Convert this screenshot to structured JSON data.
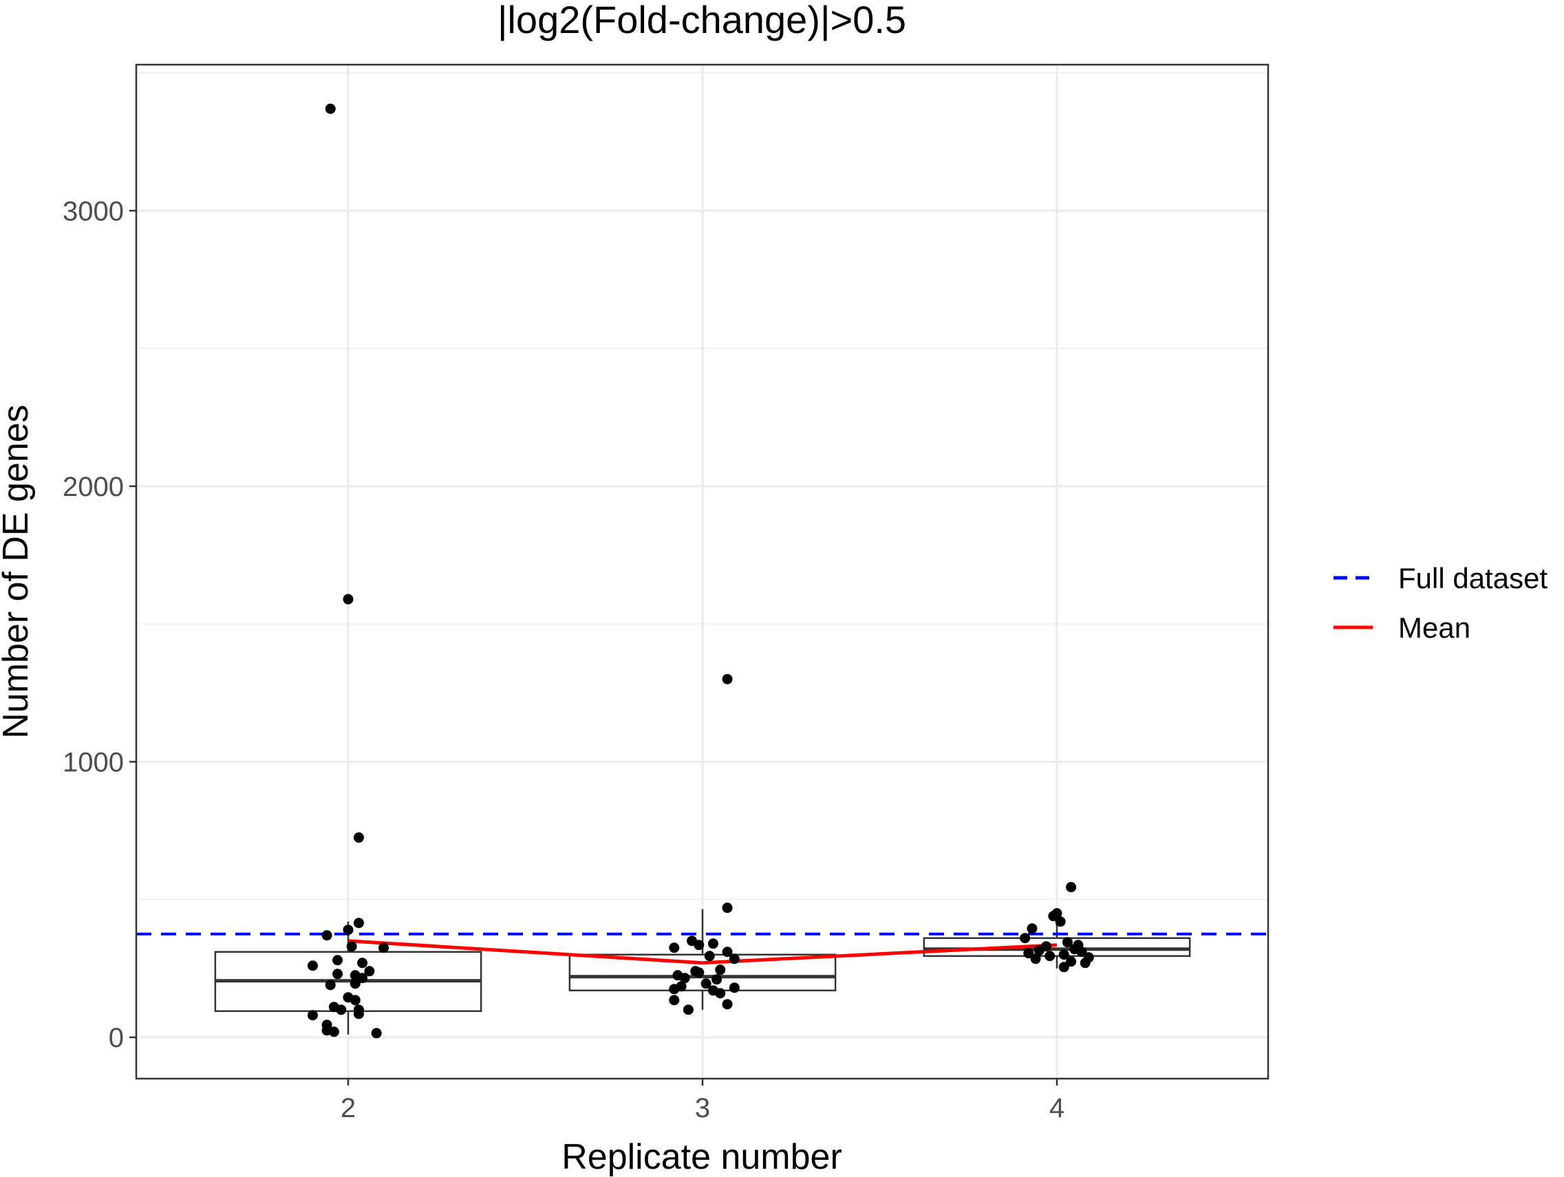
{
  "chart_data": {
    "type": "box",
    "title": "|log2(Fold-change)|>0.5",
    "xlabel": "Replicate number",
    "ylabel": "Number of DE genes",
    "categories": [
      "2",
      "3",
      "4"
    ],
    "ylim": [
      -150,
      3530
    ],
    "y_ticks": [
      0,
      1000,
      2000,
      3000
    ],
    "y_tick_labels": [
      "0",
      "1000",
      "2000",
      "3000"
    ],
    "grid": true,
    "boxes": [
      {
        "category": "2",
        "lower_whisker": 10,
        "q1": 95,
        "median": 205,
        "q3": 310,
        "upper_whisker": 420
      },
      {
        "category": "3",
        "lower_whisker": 100,
        "q1": 170,
        "median": 220,
        "q3": 300,
        "upper_whisker": 465
      },
      {
        "category": "4",
        "lower_whisker": 250,
        "q1": 295,
        "median": 320,
        "q3": 360,
        "upper_whisker": 445
      }
    ],
    "points": [
      {
        "x": "2",
        "y": 3370,
        "jitter": -0.05
      },
      {
        "x": "2",
        "y": 1590,
        "jitter": 0.0
      },
      {
        "x": "2",
        "y": 725,
        "jitter": 0.03
      },
      {
        "x": "2",
        "y": 415,
        "jitter": 0.03
      },
      {
        "x": "2",
        "y": 390,
        "jitter": 0.0
      },
      {
        "x": "2",
        "y": 370,
        "jitter": -0.06
      },
      {
        "x": "2",
        "y": 330,
        "jitter": 0.01
      },
      {
        "x": "2",
        "y": 325,
        "jitter": 0.1
      },
      {
        "x": "2",
        "y": 280,
        "jitter": -0.03
      },
      {
        "x": "2",
        "y": 270,
        "jitter": 0.04
      },
      {
        "x": "2",
        "y": 260,
        "jitter": -0.1
      },
      {
        "x": "2",
        "y": 240,
        "jitter": 0.06
      },
      {
        "x": "2",
        "y": 230,
        "jitter": -0.03
      },
      {
        "x": "2",
        "y": 225,
        "jitter": 0.02
      },
      {
        "x": "2",
        "y": 215,
        "jitter": 0.04
      },
      {
        "x": "2",
        "y": 195,
        "jitter": 0.02
      },
      {
        "x": "2",
        "y": 190,
        "jitter": -0.05
      },
      {
        "x": "2",
        "y": 145,
        "jitter": 0.0
      },
      {
        "x": "2",
        "y": 135,
        "jitter": 0.02
      },
      {
        "x": "2",
        "y": 110,
        "jitter": -0.04
      },
      {
        "x": "2",
        "y": 100,
        "jitter": 0.03
      },
      {
        "x": "2",
        "y": 100,
        "jitter": -0.02
      },
      {
        "x": "2",
        "y": 85,
        "jitter": 0.03
      },
      {
        "x": "2",
        "y": 80,
        "jitter": -0.1
      },
      {
        "x": "2",
        "y": 45,
        "jitter": -0.06
      },
      {
        "x": "2",
        "y": 25,
        "jitter": -0.06
      },
      {
        "x": "2",
        "y": 20,
        "jitter": -0.04
      },
      {
        "x": "2",
        "y": 15,
        "jitter": 0.08
      },
      {
        "x": "3",
        "y": 1300,
        "jitter": 0.07
      },
      {
        "x": "3",
        "y": 470,
        "jitter": 0.07
      },
      {
        "x": "3",
        "y": 350,
        "jitter": -0.03
      },
      {
        "x": "3",
        "y": 340,
        "jitter": 0.03
      },
      {
        "x": "3",
        "y": 335,
        "jitter": -0.01
      },
      {
        "x": "3",
        "y": 325,
        "jitter": -0.08
      },
      {
        "x": "3",
        "y": 310,
        "jitter": 0.07
      },
      {
        "x": "3",
        "y": 295,
        "jitter": 0.02
      },
      {
        "x": "3",
        "y": 285,
        "jitter": 0.09
      },
      {
        "x": "3",
        "y": 245,
        "jitter": 0.05
      },
      {
        "x": "3",
        "y": 240,
        "jitter": -0.02
      },
      {
        "x": "3",
        "y": 235,
        "jitter": -0.01
      },
      {
        "x": "3",
        "y": 225,
        "jitter": -0.07
      },
      {
        "x": "3",
        "y": 215,
        "jitter": -0.05
      },
      {
        "x": "3",
        "y": 210,
        "jitter": 0.04
      },
      {
        "x": "3",
        "y": 195,
        "jitter": 0.01
      },
      {
        "x": "3",
        "y": 185,
        "jitter": -0.06
      },
      {
        "x": "3",
        "y": 180,
        "jitter": 0.09
      },
      {
        "x": "3",
        "y": 175,
        "jitter": -0.08
      },
      {
        "x": "3",
        "y": 170,
        "jitter": 0.03
      },
      {
        "x": "3",
        "y": 160,
        "jitter": 0.05
      },
      {
        "x": "3",
        "y": 135,
        "jitter": -0.08
      },
      {
        "x": "3",
        "y": 120,
        "jitter": 0.07
      },
      {
        "x": "3",
        "y": 100,
        "jitter": -0.04
      },
      {
        "x": "4",
        "y": 545,
        "jitter": 0.04
      },
      {
        "x": "4",
        "y": 450,
        "jitter": 0.0
      },
      {
        "x": "4",
        "y": 440,
        "jitter": -0.01
      },
      {
        "x": "4",
        "y": 420,
        "jitter": 0.01
      },
      {
        "x": "4",
        "y": 395,
        "jitter": -0.07
      },
      {
        "x": "4",
        "y": 360,
        "jitter": -0.09
      },
      {
        "x": "4",
        "y": 345,
        "jitter": 0.03
      },
      {
        "x": "4",
        "y": 335,
        "jitter": 0.06
      },
      {
        "x": "4",
        "y": 330,
        "jitter": -0.03
      },
      {
        "x": "4",
        "y": 320,
        "jitter": 0.05
      },
      {
        "x": "4",
        "y": 315,
        "jitter": -0.05
      },
      {
        "x": "4",
        "y": 310,
        "jitter": 0.07
      },
      {
        "x": "4",
        "y": 305,
        "jitter": -0.08
      },
      {
        "x": "4",
        "y": 300,
        "jitter": 0.02
      },
      {
        "x": "4",
        "y": 295,
        "jitter": -0.02
      },
      {
        "x": "4",
        "y": 290,
        "jitter": 0.09
      },
      {
        "x": "4",
        "y": 285,
        "jitter": -0.06
      },
      {
        "x": "4",
        "y": 275,
        "jitter": 0.04
      },
      {
        "x": "4",
        "y": 270,
        "jitter": 0.08
      },
      {
        "x": "4",
        "y": 255,
        "jitter": 0.02
      }
    ],
    "reference_lines": [
      {
        "name": "Full dataset",
        "y": 375,
        "color": "#0000ff",
        "style": "dashed"
      }
    ],
    "series": [
      {
        "name": "Mean",
        "color": "#ff0000",
        "x": [
          "2",
          "3",
          "4"
        ],
        "values": [
          350,
          270,
          335
        ]
      }
    ],
    "legend": {
      "position": "right",
      "entries": [
        {
          "label": "Full dataset",
          "color": "#0000ff",
          "style": "dashed"
        },
        {
          "label": "Mean",
          "color": "#ff0000",
          "style": "solid"
        }
      ]
    }
  }
}
